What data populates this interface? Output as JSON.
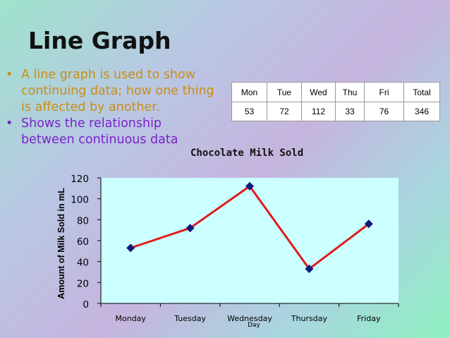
{
  "slide": {
    "title": "Line Graph",
    "bullets": [
      "A line graph is used to show continuing data; how one thing is affected by another.",
      "Shows the relationship between continuous data"
    ]
  },
  "table": {
    "headers": [
      "Mon",
      "Tue",
      "Wed",
      "Thu",
      "Fri",
      "Total"
    ],
    "values": [
      "53",
      "72",
      "112",
      "33",
      "76",
      "346"
    ]
  },
  "chart_data": {
    "type": "line",
    "title": "Chocolate Milk Sold",
    "xlabel": "Day",
    "ylabel": "Amount of Milk Sold in mL",
    "categories": [
      "Monday",
      "Tuesday",
      "Wednesday",
      "Thursday",
      "Friday"
    ],
    "series": [
      {
        "values": [
          53,
          72,
          112,
          33,
          76
        ]
      }
    ],
    "ylim": [
      0,
      120
    ],
    "yticks": [
      0,
      20,
      40,
      60,
      80,
      100,
      120
    ],
    "grid": false,
    "legend": "none",
    "colors": {
      "line": "#e01b1b",
      "marker": "#0c1a7a",
      "plot_bg": "#ccffff"
    }
  }
}
